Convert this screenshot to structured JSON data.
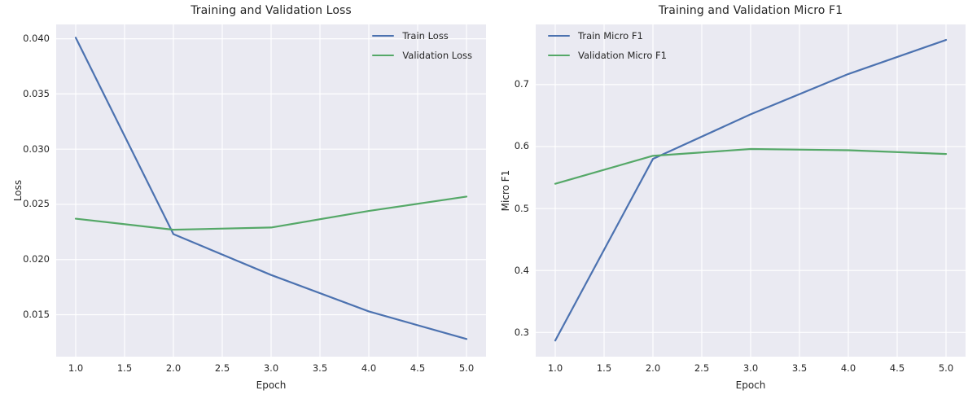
{
  "figure": {
    "background": "#ffffff",
    "axes_background": "#eaeaf2",
    "grid_color": "#ffffff",
    "text_color": "#262626",
    "palette": {
      "blue": "#4C72B0",
      "green": "#55A868"
    }
  },
  "chart_data": [
    {
      "type": "line",
      "title": "Training and Validation Loss",
      "xlabel": "Epoch",
      "ylabel": "Loss",
      "x": [
        1.0,
        2.0,
        3.0,
        4.0,
        5.0
      ],
      "series": [
        {
          "name": "Train Loss",
          "color": "#4C72B0",
          "values": [
            0.0401,
            0.0223,
            0.0186,
            0.0153,
            0.0128
          ]
        },
        {
          "name": "Validation Loss",
          "color": "#55A868",
          "values": [
            0.0237,
            0.0227,
            0.0229,
            0.0244,
            0.0257
          ]
        }
      ],
      "xlim": [
        0.8,
        5.2
      ],
      "ylim": [
        0.0112,
        0.0413
      ],
      "xticks": [
        1.0,
        1.5,
        2.0,
        2.5,
        3.0,
        3.5,
        4.0,
        4.5,
        5.0
      ],
      "xtick_labels": [
        "1.0",
        "1.5",
        "2.0",
        "2.5",
        "3.0",
        "3.5",
        "4.0",
        "4.5",
        "5.0"
      ],
      "yticks": [
        0.015,
        0.02,
        0.025,
        0.03,
        0.035,
        0.04
      ],
      "ytick_labels": [
        "0.015",
        "0.020",
        "0.025",
        "0.030",
        "0.035",
        "0.040"
      ],
      "grid": true,
      "legend_position": "upper-right"
    },
    {
      "type": "line",
      "title": "Training and Validation Micro F1",
      "xlabel": "Epoch",
      "ylabel": "Micro F1",
      "x": [
        1.0,
        2.0,
        3.0,
        4.0,
        5.0
      ],
      "series": [
        {
          "name": "Train Micro F1",
          "color": "#4C72B0",
          "values": [
            0.287,
            0.58,
            0.652,
            0.717,
            0.772
          ]
        },
        {
          "name": "Validation Micro F1",
          "color": "#55A868",
          "values": [
            0.54,
            0.585,
            0.596,
            0.594,
            0.588
          ]
        }
      ],
      "xlim": [
        0.8,
        5.2
      ],
      "ylim": [
        0.261,
        0.797
      ],
      "xticks": [
        1.0,
        1.5,
        2.0,
        2.5,
        3.0,
        3.5,
        4.0,
        4.5,
        5.0
      ],
      "xtick_labels": [
        "1.0",
        "1.5",
        "2.0",
        "2.5",
        "3.0",
        "3.5",
        "4.0",
        "4.5",
        "5.0"
      ],
      "yticks": [
        0.3,
        0.4,
        0.5,
        0.6,
        0.7
      ],
      "ytick_labels": [
        "0.3",
        "0.4",
        "0.5",
        "0.6",
        "0.7"
      ],
      "grid": true,
      "legend_position": "upper-left"
    }
  ]
}
